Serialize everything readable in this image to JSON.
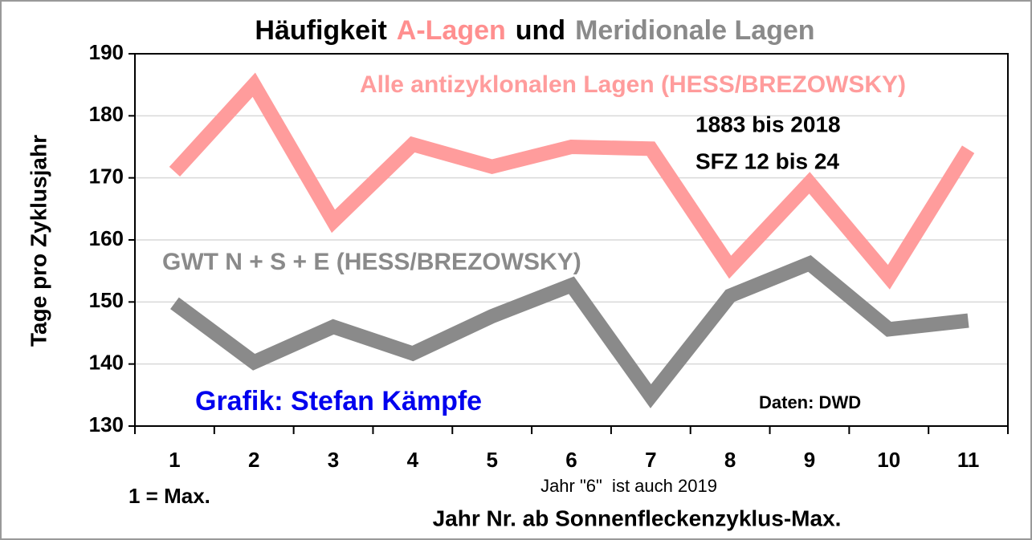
{
  "chart_data": {
    "type": "line",
    "title_parts": [
      {
        "text": "Häufigkeit",
        "color": "#000000"
      },
      {
        "text": "A-Lagen",
        "color": "#ff8f8f"
      },
      {
        "text": "und",
        "color": "#000000"
      },
      {
        "text": "Meridionale Lagen",
        "color": "#8a8a8a"
      }
    ],
    "y_label": "Tage pro Zyklusjahr",
    "x_label": "Jahr Nr. ab Sonnenfleckenzyklus-Max.",
    "categories": [
      "1",
      "2",
      "3",
      "4",
      "5",
      "6",
      "7",
      "8",
      "9",
      "10",
      "11"
    ],
    "series": [
      {
        "name": "Alle antizyklonalen Lagen (HESS/BREZOWSKY)",
        "color": "#ff9c9c",
        "values": [
          171,
          185,
          163,
          175.4,
          171.8,
          175,
          174.7,
          155.6,
          169.2,
          154,
          174.6
        ]
      },
      {
        "name": "GWT N + S + E (HESS/BREZOWSKY)",
        "color": "#8a8a8a",
        "values": [
          149.8,
          140.3,
          146,
          141.7,
          147.7,
          152.7,
          134.8,
          151,
          156.2,
          145.6,
          147
        ]
      }
    ],
    "ylim": [
      130,
      190
    ],
    "yticks": [
      130,
      140,
      150,
      160,
      170,
      180,
      190
    ],
    "grid": true,
    "annotations": [
      {
        "text": "1883 bis 2018",
        "color": "#000000"
      },
      {
        "text": "SFZ 12 bis 24",
        "color": "#000000"
      },
      {
        "text": "Grafik: Stefan Kämpfe",
        "color": "#0000ee"
      },
      {
        "text": "Daten: DWD",
        "color": "#000000"
      },
      {
        "text": "1 = Max.",
        "color": "#000000"
      },
      {
        "text": "Jahr \"6\"  ist auch 2019",
        "color": "#000000"
      }
    ]
  }
}
